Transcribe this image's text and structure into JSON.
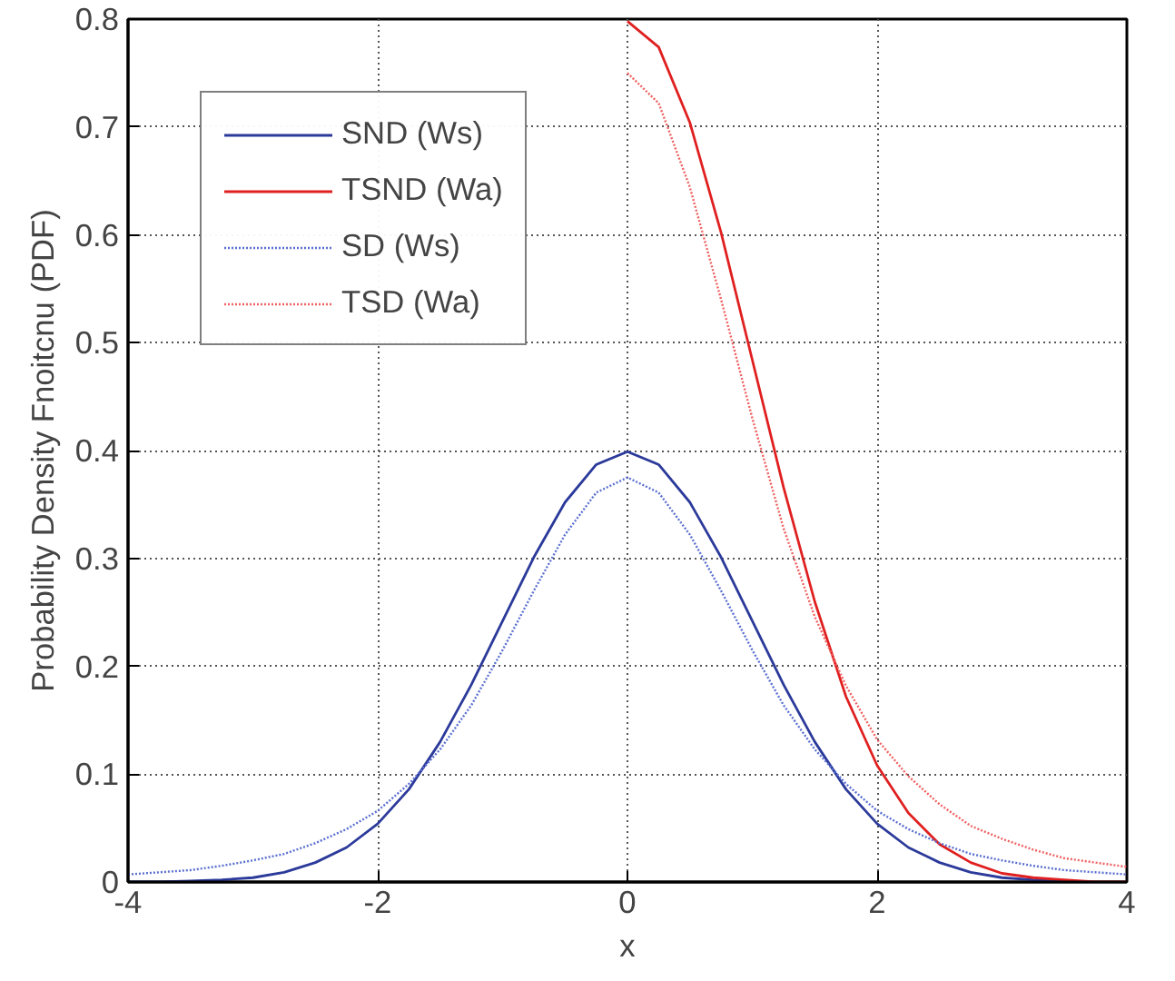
{
  "chart_data": {
    "type": "line",
    "xlabel": "x",
    "ylabel": "Probability Density Fnoitcnu (PDF)",
    "xlim": [
      -4,
      4
    ],
    "xticks": [
      -4,
      -2,
      0,
      2,
      4
    ],
    "ylim": [
      0,
      0.8
    ],
    "yticks": [
      0,
      0.1,
      0.2,
      0.3,
      0.4,
      0.5,
      0.6,
      0.7,
      0.8
    ],
    "grid": true,
    "legend": "top left",
    "series": [
      {
        "name": "SND (Ws)",
        "color": "#2b3a9a",
        "line_style": "solid",
        "x": [
          -4,
          -3.75,
          -3.5,
          -3.25,
          -3,
          -2.75,
          -2.5,
          -2.25,
          -2,
          -1.75,
          -1.5,
          -1.25,
          -1,
          -0.75,
          -0.5,
          -0.25,
          0,
          0.25,
          0.5,
          0.75,
          1,
          1.25,
          1.5,
          1.75,
          2,
          2.25,
          2.5,
          2.75,
          3,
          3.25,
          3.5
        ],
        "values": [
          0.0,
          0.0,
          0.001,
          0.002,
          0.004,
          0.009,
          0.018,
          0.032,
          0.054,
          0.086,
          0.13,
          0.183,
          0.242,
          0.301,
          0.352,
          0.387,
          0.399,
          0.387,
          0.352,
          0.301,
          0.242,
          0.183,
          0.13,
          0.086,
          0.054,
          0.032,
          0.018,
          0.009,
          0.004,
          0.002,
          0.001
        ]
      },
      {
        "name": "TSND (Wa)",
        "color": "#e02020",
        "line_style": "solid",
        "x": [
          0,
          0.25,
          0.5,
          0.75,
          1,
          1.25,
          1.5,
          1.75,
          2,
          2.25,
          2.5,
          2.75,
          3,
          3.25,
          3.5,
          3.75,
          4
        ],
        "values": [
          0.798,
          0.774,
          0.704,
          0.602,
          0.484,
          0.366,
          0.26,
          0.172,
          0.108,
          0.064,
          0.035,
          0.018,
          0.008,
          0.004,
          0.002,
          0.0,
          0.0
        ]
      },
      {
        "name": "SD (Ws)",
        "color": "#5a6fd0",
        "line_style": "dotted",
        "x": [
          -4,
          -3.75,
          -3.5,
          -3.25,
          -3,
          -2.75,
          -2.5,
          -2.25,
          -2,
          -1.75,
          -1.5,
          -1.25,
          -1,
          -0.75,
          -0.5,
          -0.25,
          0,
          0.25,
          0.5,
          0.75,
          1,
          1.25,
          1.5,
          1.75,
          2,
          2.25,
          2.5,
          2.75,
          3,
          3.25,
          3.5,
          3.75,
          4
        ],
        "values": [
          0.007,
          0.009,
          0.011,
          0.015,
          0.02,
          0.026,
          0.036,
          0.049,
          0.066,
          0.091,
          0.123,
          0.164,
          0.215,
          0.27,
          0.322,
          0.361,
          0.375,
          0.361,
          0.322,
          0.27,
          0.215,
          0.164,
          0.123,
          0.091,
          0.066,
          0.049,
          0.036,
          0.026,
          0.02,
          0.015,
          0.011,
          0.009,
          0.007
        ]
      },
      {
        "name": "TSD (Wa)",
        "color": "#f06060",
        "line_style": "dotted",
        "x": [
          0,
          0.25,
          0.5,
          0.75,
          1,
          1.25,
          1.5,
          1.75,
          2,
          2.25,
          2.5,
          2.75,
          3,
          3.25,
          3.5,
          3.75,
          4
        ],
        "values": [
          0.75,
          0.722,
          0.644,
          0.54,
          0.43,
          0.328,
          0.246,
          0.182,
          0.132,
          0.098,
          0.072,
          0.052,
          0.04,
          0.03,
          0.022,
          0.018,
          0.014
        ]
      }
    ]
  }
}
